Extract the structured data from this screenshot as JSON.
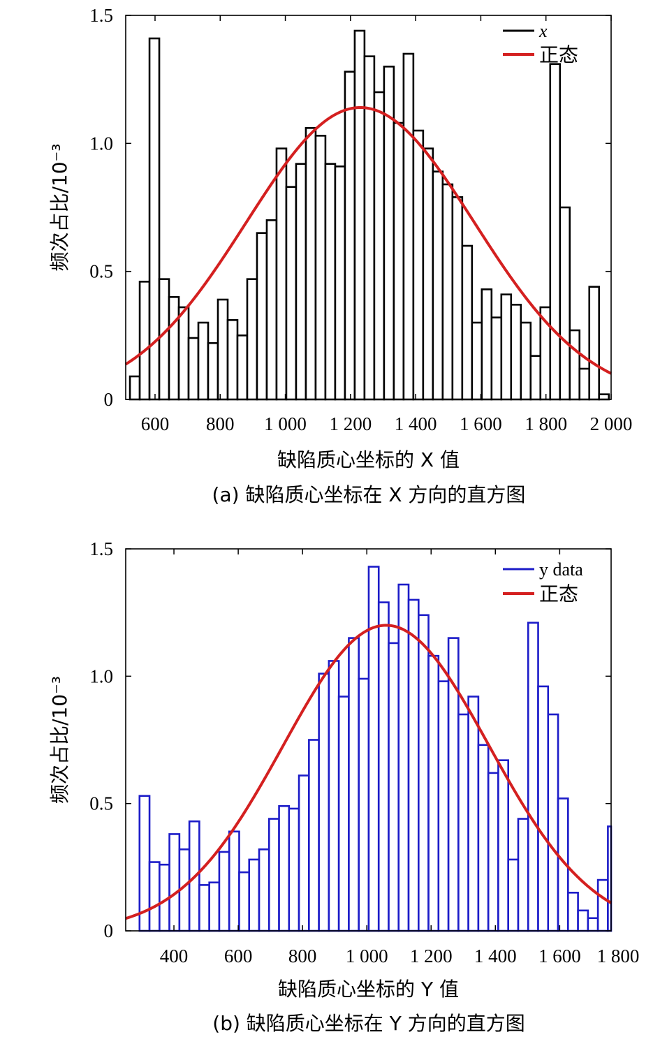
{
  "chart_data": [
    {
      "type": "bar",
      "panel": "a",
      "caption": "(a) 缺陷质心坐标在 X 方向的直方图",
      "xlabel": "缺陷质心坐标的 X 值",
      "ylabel": "频次占比/10⁻³",
      "xlim": [
        510,
        2000
      ],
      "ylim": [
        0,
        1.5
      ],
      "xticks": [
        600,
        800,
        1000,
        1200,
        1400,
        1600,
        1800,
        2000
      ],
      "xtick_labels": [
        "600",
        "800",
        "1 000",
        "1 200",
        "1 400",
        "1 600",
        "1 800",
        "2 000"
      ],
      "yticks": [
        0,
        0.5,
        1.0,
        1.5
      ],
      "ytick_labels": [
        "0",
        "0.5",
        "1.0",
        "1.5"
      ],
      "bin_start": 523,
      "bin_width": 30,
      "series": [
        {
          "name": "x",
          "color": "#000000",
          "values": [
            0.09,
            0.46,
            1.41,
            0.47,
            0.4,
            0.36,
            0.24,
            0.3,
            0.22,
            0.39,
            0.31,
            0.25,
            0.47,
            0.65,
            0.7,
            0.98,
            0.83,
            0.92,
            1.06,
            1.03,
            0.92,
            0.91,
            1.28,
            1.44,
            1.34,
            1.2,
            1.3,
            1.08,
            1.35,
            1.05,
            0.98,
            0.89,
            0.84,
            0.79,
            0.6,
            0.3,
            0.43,
            0.32,
            0.41,
            0.37,
            0.3,
            0.17,
            0.36,
            1.31,
            0.75,
            0.27,
            0.12,
            0.44,
            0.02
          ]
        },
        {
          "name": "正态",
          "type": "line",
          "color": "#d42020",
          "peak": 1.14,
          "mean": 1230,
          "std": 350
        }
      ],
      "legend": [
        "x",
        "正态"
      ]
    },
    {
      "type": "bar",
      "panel": "b",
      "caption": "(b) 缺陷质心坐标在 Y 方向的直方图",
      "xlabel": "缺陷质心坐标的 Y 值",
      "ylabel": "频次占比/10⁻³",
      "xlim": [
        250,
        1760
      ],
      "ylim": [
        0,
        1.5
      ],
      "xticks": [
        400,
        600,
        800,
        1000,
        1200,
        1400,
        1600,
        1800
      ],
      "xtick_labels": [
        "400",
        "600",
        "800",
        "1 000",
        "1 200",
        "1 400",
        "1 600",
        "1 800"
      ],
      "yticks": [
        0,
        0.5,
        1.0,
        1.5
      ],
      "ytick_labels": [
        "0",
        "0.5",
        "1.0",
        "1.5"
      ],
      "bin_start": 262,
      "bin_width": 31,
      "series": [
        {
          "name": "y data",
          "color": "#1c1cc8",
          "values": [
            0.0,
            0.53,
            0.27,
            0.26,
            0.38,
            0.32,
            0.43,
            0.18,
            0.19,
            0.31,
            0.39,
            0.23,
            0.28,
            0.32,
            0.44,
            0.49,
            0.48,
            0.61,
            0.75,
            1.01,
            1.06,
            0.92,
            1.15,
            0.99,
            1.43,
            1.29,
            1.13,
            1.36,
            1.3,
            1.24,
            1.08,
            0.98,
            1.15,
            0.85,
            0.92,
            0.73,
            0.62,
            0.67,
            0.28,
            0.44,
            1.21,
            0.96,
            0.85,
            0.52,
            0.15,
            0.08,
            0.05,
            0.2,
            0.41
          ]
        },
        {
          "name": "正态",
          "type": "line",
          "color": "#d42020",
          "peak": 1.2,
          "mean": 1060,
          "std": 320
        }
      ],
      "legend": [
        "y data",
        "正态"
      ]
    }
  ]
}
